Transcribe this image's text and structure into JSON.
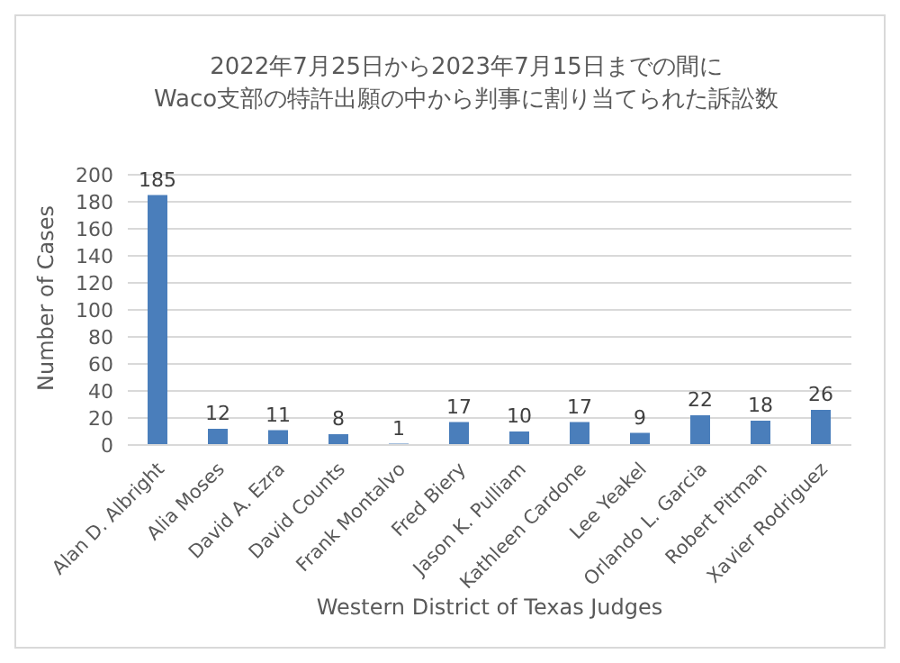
{
  "chart_data": {
    "type": "bar",
    "title": "2022年7月25日から2023年7月15日までの間に\nWaco支部の特許出願の中から判事に割り当てられた訴訟数",
    "xlabel": "Western District of Texas Judges",
    "ylabel": "Number of Cases",
    "categories": [
      "Alan D. Albright",
      "Alia Moses",
      "David A. Ezra",
      "David Counts",
      "Frank Montalvo",
      "Fred Biery",
      "Jason K. Pulliam",
      "Kathleen Cardone",
      "Lee Yeakel",
      "Orlando L. Garcia",
      "Robert Pitman",
      "Xavier Rodriguez"
    ],
    "values": [
      185,
      12,
      11,
      8,
      1,
      17,
      10,
      17,
      9,
      22,
      18,
      26
    ],
    "color": "#4a7ebb",
    "ylim": [
      0,
      200
    ],
    "yticks": [
      0,
      20,
      40,
      60,
      80,
      100,
      120,
      140,
      160,
      180,
      200
    ],
    "grid": "y",
    "data_labels": true,
    "legend": false
  }
}
